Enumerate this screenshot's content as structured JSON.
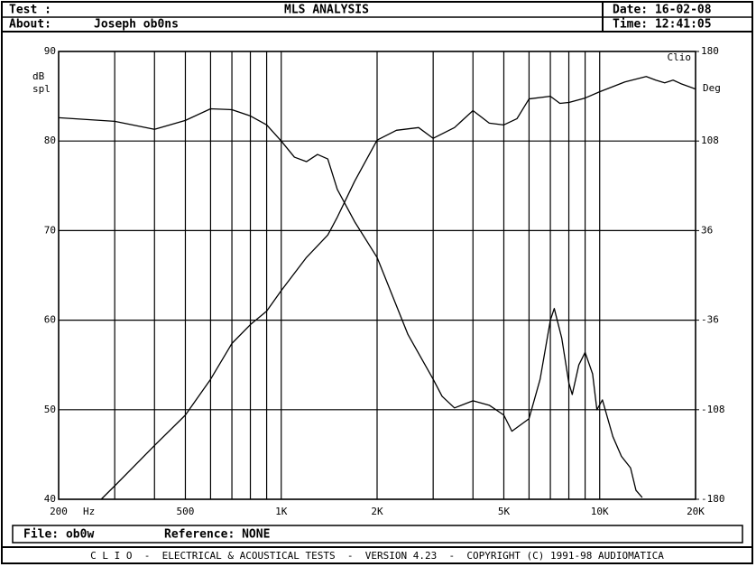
{
  "header": {
    "test": "Test :",
    "title": "MLS ANALYSIS",
    "about_label": "About:",
    "about": "Joseph ob0ns",
    "date": "Date: 16-02-08",
    "time": "Time: 12:41:05"
  },
  "chart_data": {
    "type": "line",
    "ylabel": [
      "dB",
      "spl"
    ],
    "y2label": "Deg",
    "brand": "Clio",
    "xunit": "Hz",
    "xscale": "log",
    "xlim": [
      200,
      20000
    ],
    "xticks": [
      200,
      500,
      {
        "value": 1000,
        "label": "1K"
      },
      {
        "value": 2000,
        "label": "2K"
      },
      {
        "value": 5000,
        "label": "5K"
      },
      {
        "value": 10000,
        "label": "10K"
      },
      {
        "value": 20000,
        "label": "20K"
      }
    ],
    "x_minor_ticks": [
      300,
      400,
      600,
      700,
      800,
      900,
      3000,
      4000,
      6000,
      7000,
      8000,
      9000,
      30000
    ],
    "ylim": [
      40,
      90
    ],
    "yticks": [
      40,
      50,
      60,
      70,
      80,
      90
    ],
    "y2lim": [
      -180,
      180
    ],
    "y2ticks": [
      180,
      108,
      36,
      -36,
      -108,
      -180
    ],
    "grid": true,
    "series": [
      {
        "color": "#000000",
        "x": [
          200,
          300,
          400,
          500,
          600,
          700,
          800,
          900,
          1000,
          1100,
          1200,
          1300,
          1400,
          1500,
          1700,
          2000,
          2500,
          3000,
          3200,
          3500,
          4000,
          4500,
          5000,
          5300,
          6000,
          6500,
          7000,
          7200,
          7600,
          8000,
          8200,
          8600,
          9000,
          9500,
          9800,
          10200,
          11000,
          11700,
          12500,
          13000,
          13600
        ],
        "values": [
          82.6,
          82.2,
          81.3,
          82.3,
          83.6,
          83.5,
          82.8,
          81.8,
          80.0,
          78.2,
          77.7,
          78.5,
          78.0,
          74.6,
          71,
          67,
          58.4,
          53.4,
          51.5,
          50.2,
          51,
          50.5,
          49.4,
          47.6,
          49,
          53.4,
          60,
          61.3,
          58,
          53,
          51.7,
          55,
          56.4,
          54,
          50,
          51.1,
          47,
          44.8,
          43.5,
          41,
          40.2
        ]
      },
      {
        "color": "#000000",
        "x": [
          272,
          300,
          400,
          500,
          600,
          700,
          800,
          900,
          1000,
          1200,
          1400,
          1500,
          1700,
          2000,
          2300,
          2700,
          3000,
          3500,
          4000,
          4500,
          5000,
          5500,
          6000,
          7000,
          7500,
          8000,
          9000,
          10000,
          12000,
          14000,
          15000,
          16000,
          17000,
          18000,
          20000
        ],
        "values": [
          40,
          41.5,
          46,
          49.4,
          53.4,
          57.4,
          59.5,
          61,
          63.3,
          67,
          69.5,
          71.5,
          75.5,
          80.1,
          81.2,
          81.5,
          80.3,
          81.5,
          83.4,
          82,
          81.8,
          82.5,
          84.7,
          85,
          84.2,
          84.3,
          84.8,
          85.5,
          86.6,
          87.2,
          86.8,
          86.5,
          86.8,
          86.4,
          85.8
        ]
      }
    ]
  },
  "file": {
    "file": "File: ob0w",
    "reference": "Reference: NONE"
  },
  "footer": "C L I O  -  ELECTRICAL & ACOUSTICAL TESTS  -  VERSION 4.23  -  COPYRIGHT (C) 1991-98 AUDIOMATICA"
}
